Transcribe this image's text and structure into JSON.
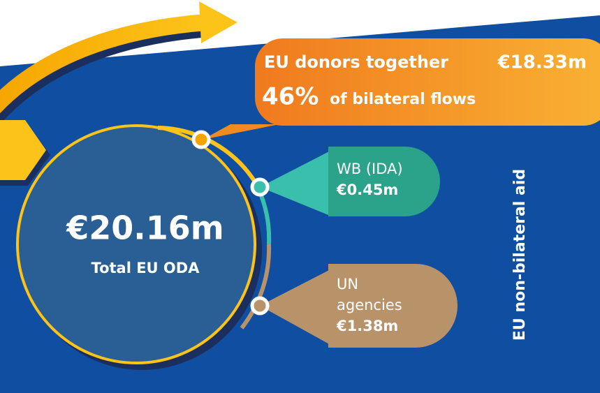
{
  "total": {
    "value": "€20.16m",
    "label": "Total EU ODA"
  },
  "eu_donors": {
    "label": "EU donors together",
    "value": "€18.33m",
    "share": "46%",
    "share_label": "of bilateral flows"
  },
  "wb": {
    "label": "WB (IDA)",
    "value": "€0.45m"
  },
  "un": {
    "label_line1": "UN",
    "label_line2": "agencies",
    "value": "€1.38m"
  },
  "side_label": "EU non-bilateral aid"
}
